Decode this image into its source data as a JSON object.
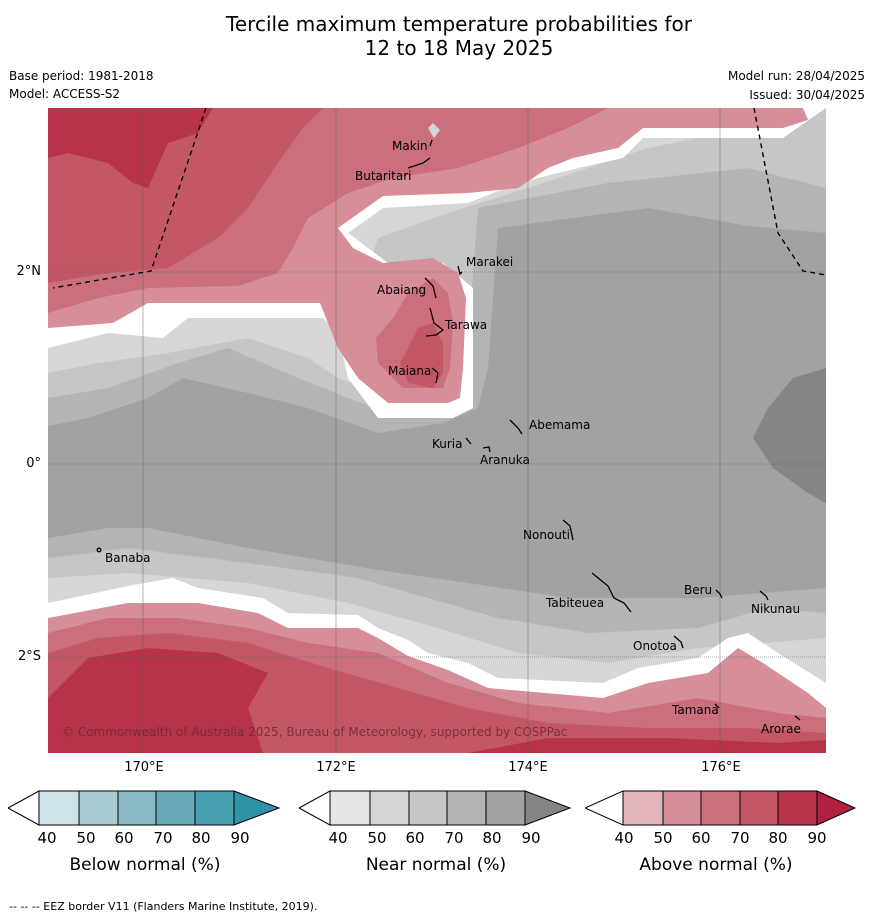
{
  "title_line1": "Tercile maximum temperature probabilities for",
  "title_line2": "12 to 18 May 2025",
  "base_period": "Base period: 1981-2018",
  "model": "Model: ACCESS-S2",
  "model_run": "Model run: 28/04/2025",
  "issued": "Issued: 30/04/2025",
  "lat_labels": [
    "2°N",
    "0°",
    "2°S"
  ],
  "lon_labels": [
    "170°E",
    "172°E",
    "174°E",
    "176°E"
  ],
  "places": {
    "makin": "Makin",
    "butaritari": "Butaritari",
    "marakei": "Marakei",
    "abaiang": "Abaiang",
    "tarawa": "Tarawa",
    "maiana": "Maiana",
    "abemama": "Abemama",
    "kuria": "Kuria",
    "aranuka": "Aranuka",
    "nonouti": "Nonouti",
    "banaba": "Banaba",
    "beru": "Beru",
    "tabiteuea": "Tabiteuea",
    "nikunau": "Nikunau",
    "onotoa": "Onotoa",
    "tamana": "Tamana",
    "arorae": "Arorae"
  },
  "copyright": "© Commonwealth of Australia 2025, Bureau of Meteorology, supported by COSPPac",
  "colorbars": [
    {
      "name": "below-normal",
      "label": "Below normal (%)",
      "ticks": [
        "40",
        "50",
        "60",
        "70",
        "80",
        "90"
      ],
      "colors": [
        "#ffffff",
        "#cde4ea",
        "#a8ccd3",
        "#8ab9c4",
        "#6aa9b8",
        "#47a0b0",
        "#2e93a6"
      ]
    },
    {
      "name": "near-normal",
      "label": "Near normal (%)",
      "ticks": [
        "40",
        "50",
        "60",
        "70",
        "80",
        "90"
      ],
      "colors": [
        "#ffffff",
        "#e6e6e6",
        "#d6d6d6",
        "#c6c6c6",
        "#b4b4b4",
        "#a2a2a2",
        "#858585"
      ]
    },
    {
      "name": "above-normal",
      "label": "Above normal (%)",
      "ticks": [
        "40",
        "50",
        "60",
        "70",
        "80",
        "90"
      ],
      "colors": [
        "#ffffff",
        "#e2b4bb",
        "#d68e98",
        "#cb6f7c",
        "#c45765",
        "#b7334a",
        "#b02040"
      ]
    }
  ],
  "legend_eez": "-- -- -- EEZ border V11 (Flanders Marine Institute, 2019)."
}
